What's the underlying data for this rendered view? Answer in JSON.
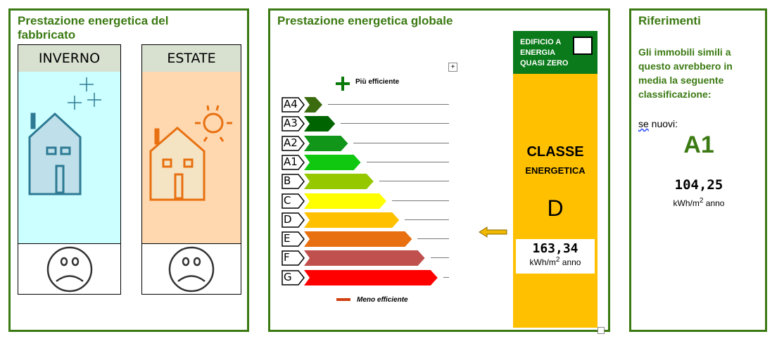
{
  "building": {
    "title": "Prestazione energetica del fabbricato",
    "winter": {
      "label": "INVERNO",
      "mood": "sad"
    },
    "summer": {
      "label": "ESTATE",
      "mood": "sad"
    }
  },
  "global": {
    "title": "Prestazione energetica globale",
    "more_efficient": "Più efficiente",
    "less_efficient": "Meno efficiente",
    "classes": [
      {
        "label": "A4",
        "color": "#3a6b0e"
      },
      {
        "label": "A3",
        "color": "#006400"
      },
      {
        "label": "A2",
        "color": "#12961a"
      },
      {
        "label": "A1",
        "color": "#10c810"
      },
      {
        "label": "B",
        "color": "#96c800"
      },
      {
        "label": "C",
        "color": "#ffff00"
      },
      {
        "label": "D",
        "color": "#ffc000"
      },
      {
        "label": "E",
        "color": "#e87010"
      },
      {
        "label": "F",
        "color": "#c0504d"
      },
      {
        "label": "G",
        "color": "#ff0000"
      }
    ],
    "nzeb": "EDIFICIO A ENERGIA QUASI ZERO",
    "nzeb_checked": false,
    "class_title": "CLASSE",
    "class_subtitle": "ENERGETICA",
    "class_value": "D",
    "value": "163,34",
    "unit": "kWh/m",
    "unit_sup": "2",
    "unit_suffix": " anno",
    "current_class_index": 6
  },
  "references": {
    "title": "Riferimenti",
    "text": "Gli immobili simili a questo avrebbero in media la seguente classificazione:",
    "new_label_a": "se",
    "new_label_b": " nuovi:",
    "class": "A1",
    "value": "104,25",
    "unit": "kWh/m",
    "unit_sup": "2",
    "unit_suffix": " anno"
  }
}
